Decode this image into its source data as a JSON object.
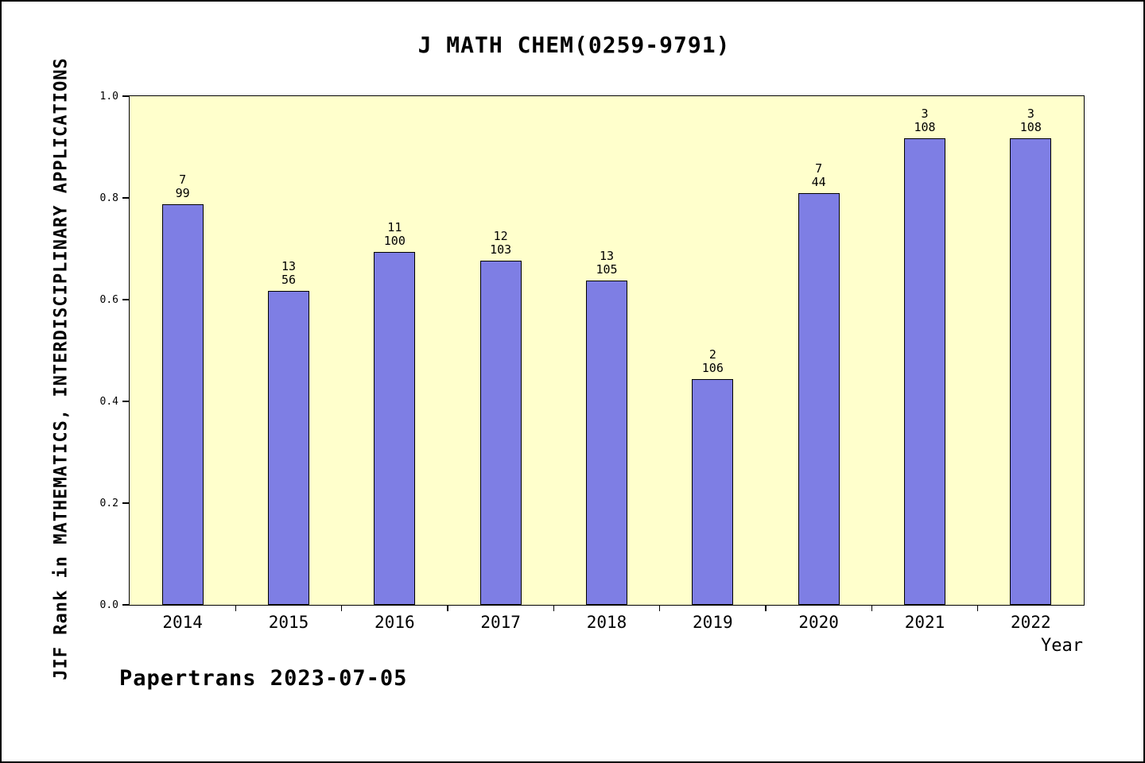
{
  "title": "J MATH CHEM(0259-9791)",
  "footer": "Papertrans 2023-07-05",
  "chart_data": {
    "type": "bar",
    "title": "J MATH CHEM(0259-9791)",
    "xlabel": "Year",
    "ylabel": "JIF Rank in MATHEMATICS, INTERDISCIPLINARY APPLICATIONS",
    "categories": [
      "2014",
      "2015",
      "2016",
      "2017",
      "2018",
      "2019",
      "2020",
      "2021",
      "2022"
    ],
    "values": [
      0.787,
      0.617,
      0.693,
      0.676,
      0.638,
      0.443,
      0.81,
      0.917,
      0.917
    ],
    "bar_labels": [
      [
        "7",
        "99"
      ],
      [
        "13",
        "56"
      ],
      [
        "11",
        "100"
      ],
      [
        "12",
        "103"
      ],
      [
        "13",
        "105"
      ],
      [
        "2",
        "106"
      ],
      [
        "7",
        "44"
      ],
      [
        "3",
        "108"
      ],
      [
        "3",
        "108"
      ]
    ],
    "ylim": [
      0,
      1
    ],
    "yticks": [
      "0.0",
      "0.2",
      "0.4",
      "0.6",
      "0.8",
      "1.0"
    ],
    "grid": false,
    "legend": "none",
    "colors": {
      "bar_fill": "#7e7ee4",
      "bar_edge": "#000000",
      "plot_bg": "#ffffcc",
      "page_bg": "#ffffff"
    }
  }
}
